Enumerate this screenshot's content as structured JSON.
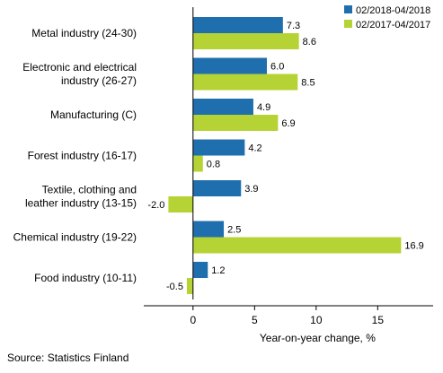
{
  "chart_data": {
    "type": "bar",
    "orientation": "horizontal",
    "categories": [
      [
        "Metal industry (24-30)"
      ],
      [
        "Electronic and electrical",
        "industry (26-27)"
      ],
      [
        "Manufacturing (C)"
      ],
      [
        "Forest industry (16-17)"
      ],
      [
        "Textile, clothing and",
        "leather industry (13-15)"
      ],
      [
        "Chemical industry (19-22)"
      ],
      [
        "Food industry (10-11)"
      ]
    ],
    "series": [
      {
        "name": "02/2018-04/2018",
        "color": "#1f6fae",
        "values": [
          7.3,
          6.0,
          4.9,
          4.2,
          3.9,
          2.5,
          1.2
        ]
      },
      {
        "name": "02/2017-04/2017",
        "color": "#b5d334",
        "values": [
          8.6,
          8.5,
          6.9,
          0.8,
          -2.0,
          16.9,
          -0.5
        ]
      }
    ],
    "xlabel": "Year-on-year change, %",
    "xlim": [
      -4,
      19.5
    ],
    "xticks": [
      0,
      5,
      10,
      15
    ],
    "grid": false,
    "legend_position": "top-right",
    "data_labels": true,
    "value_decimals": 1
  },
  "source": "Source: Statistics Finland"
}
